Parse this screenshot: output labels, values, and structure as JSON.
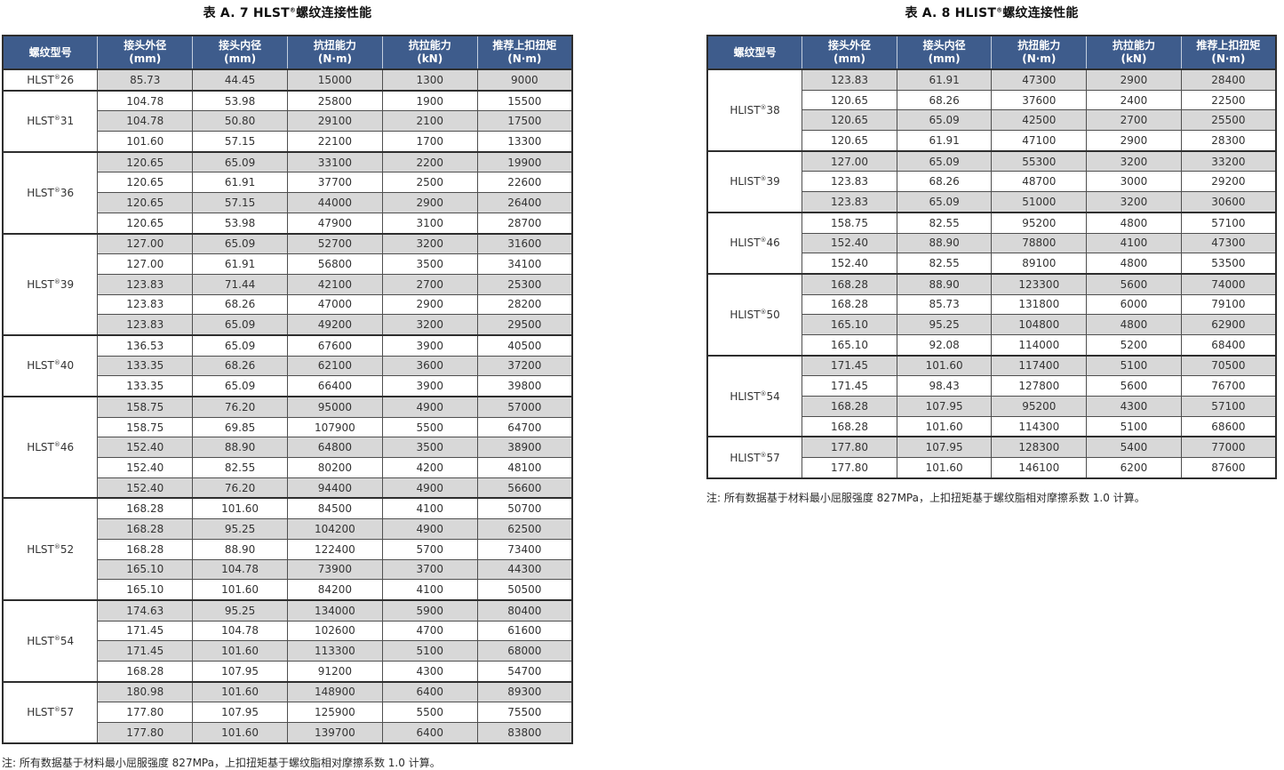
{
  "colors": {
    "header_bg": "#3e5c8c",
    "header_text": "#ffffff",
    "row_shade": "#d8d8d8",
    "row_plain": "#ffffff",
    "border_dark": "#2e2e2e",
    "border_inner": "#4f4f4f"
  },
  "columns": [
    {
      "key": "model",
      "label": "螺纹型号",
      "unit": ""
    },
    {
      "key": "outer-diameter",
      "label": "接头外径",
      "unit": "(mm)"
    },
    {
      "key": "inner-diameter",
      "label": "接头内径",
      "unit": "(mm)"
    },
    {
      "key": "torsion",
      "label": "抗扭能力",
      "unit": "(N·m)"
    },
    {
      "key": "tension",
      "label": "抗拉能力",
      "unit": "(kN)"
    },
    {
      "key": "makeup-torque",
      "label": "推荐上扣扭矩",
      "unit": "(N·m)"
    }
  ],
  "tables": [
    {
      "title": {
        "prefix": "表 A. 7 ",
        "brand": "HLST",
        "reg": "®",
        "suffix": "螺纹连接性能"
      },
      "note": "注: 所有数据基于材料最小屈服强度 827MPa，上扣扭矩基于螺纹脂相对摩擦系数 1.0 计算。",
      "groups": [
        {
          "model": {
            "brand": "HLST",
            "reg": "®",
            "size": "26"
          },
          "rows": [
            [
              "85.73",
              "44.45",
              "15000",
              "1300",
              "9000"
            ]
          ]
        },
        {
          "model": {
            "brand": "HLST",
            "reg": "®",
            "size": "31"
          },
          "rows": [
            [
              "104.78",
              "53.98",
              "25800",
              "1900",
              "15500"
            ],
            [
              "104.78",
              "50.80",
              "29100",
              "2100",
              "17500"
            ],
            [
              "101.60",
              "57.15",
              "22100",
              "1700",
              "13300"
            ]
          ]
        },
        {
          "model": {
            "brand": "HLST",
            "reg": "®",
            "size": "36"
          },
          "rows": [
            [
              "120.65",
              "65.09",
              "33100",
              "2200",
              "19900"
            ],
            [
              "120.65",
              "61.91",
              "37700",
              "2500",
              "22600"
            ],
            [
              "120.65",
              "57.15",
              "44000",
              "2900",
              "26400"
            ],
            [
              "120.65",
              "53.98",
              "47900",
              "3100",
              "28700"
            ]
          ]
        },
        {
          "model": {
            "brand": "HLST",
            "reg": "®",
            "size": "39"
          },
          "rows": [
            [
              "127.00",
              "65.09",
              "52700",
              "3200",
              "31600"
            ],
            [
              "127.00",
              "61.91",
              "56800",
              "3500",
              "34100"
            ],
            [
              "123.83",
              "71.44",
              "42100",
              "2700",
              "25300"
            ],
            [
              "123.83",
              "68.26",
              "47000",
              "2900",
              "28200"
            ],
            [
              "123.83",
              "65.09",
              "49200",
              "3200",
              "29500"
            ]
          ]
        },
        {
          "model": {
            "brand": "HLST",
            "reg": "®",
            "size": "40"
          },
          "rows": [
            [
              "136.53",
              "65.09",
              "67600",
              "3900",
              "40500"
            ],
            [
              "133.35",
              "68.26",
              "62100",
              "3600",
              "37200"
            ],
            [
              "133.35",
              "65.09",
              "66400",
              "3900",
              "39800"
            ]
          ]
        },
        {
          "model": {
            "brand": "HLST",
            "reg": "®",
            "size": "46"
          },
          "rows": [
            [
              "158.75",
              "76.20",
              "95000",
              "4900",
              "57000"
            ],
            [
              "158.75",
              "69.85",
              "107900",
              "5500",
              "64700"
            ],
            [
              "152.40",
              "88.90",
              "64800",
              "3500",
              "38900"
            ],
            [
              "152.40",
              "82.55",
              "80200",
              "4200",
              "48100"
            ],
            [
              "152.40",
              "76.20",
              "94400",
              "4900",
              "56600"
            ]
          ]
        },
        {
          "model": {
            "brand": "HLST",
            "reg": "®",
            "size": "52"
          },
          "rows": [
            [
              "168.28",
              "101.60",
              "84500",
              "4100",
              "50700"
            ],
            [
              "168.28",
              "95.25",
              "104200",
              "4900",
              "62500"
            ],
            [
              "168.28",
              "88.90",
              "122400",
              "5700",
              "73400"
            ],
            [
              "165.10",
              "104.78",
              "73900",
              "3700",
              "44300"
            ],
            [
              "165.10",
              "101.60",
              "84200",
              "4100",
              "50500"
            ]
          ]
        },
        {
          "model": {
            "brand": "HLST",
            "reg": "®",
            "size": "54"
          },
          "rows": [
            [
              "174.63",
              "95.25",
              "134000",
              "5900",
              "80400"
            ],
            [
              "171.45",
              "104.78",
              "102600",
              "4700",
              "61600"
            ],
            [
              "171.45",
              "101.60",
              "113300",
              "5100",
              "68000"
            ],
            [
              "168.28",
              "107.95",
              "91200",
              "4300",
              "54700"
            ]
          ]
        },
        {
          "model": {
            "brand": "HLST",
            "reg": "®",
            "size": "57"
          },
          "rows": [
            [
              "180.98",
              "101.60",
              "148900",
              "6400",
              "89300"
            ],
            [
              "177.80",
              "107.95",
              "125900",
              "5500",
              "75500"
            ],
            [
              "177.80",
              "101.60",
              "139700",
              "6400",
              "83800"
            ]
          ]
        }
      ]
    },
    {
      "title": {
        "prefix": "表 A. 8 ",
        "brand": "HLIST",
        "reg": "®",
        "suffix": "螺纹连接性能"
      },
      "note": "注: 所有数据基于材料最小屈服强度 827MPa，上扣扭矩基于螺纹脂相对摩擦系数 1.0 计算。",
      "groups": [
        {
          "model": {
            "brand": "HLIST",
            "reg": "®",
            "size": "38"
          },
          "rows": [
            [
              "123.83",
              "61.91",
              "47300",
              "2900",
              "28400"
            ],
            [
              "120.65",
              "68.26",
              "37600",
              "2400",
              "22500"
            ],
            [
              "120.65",
              "65.09",
              "42500",
              "2700",
              "25500"
            ],
            [
              "120.65",
              "61.91",
              "47100",
              "2900",
              "28300"
            ]
          ]
        },
        {
          "model": {
            "brand": "HLIST",
            "reg": "®",
            "size": "39"
          },
          "rows": [
            [
              "127.00",
              "65.09",
              "55300",
              "3200",
              "33200"
            ],
            [
              "123.83",
              "68.26",
              "48700",
              "3000",
              "29200"
            ],
            [
              "123.83",
              "65.09",
              "51000",
              "3200",
              "30600"
            ]
          ]
        },
        {
          "model": {
            "brand": "HLIST",
            "reg": "®",
            "size": "46"
          },
          "rows": [
            [
              "158.75",
              "82.55",
              "95200",
              "4800",
              "57100"
            ],
            [
              "152.40",
              "88.90",
              "78800",
              "4100",
              "47300"
            ],
            [
              "152.40",
              "82.55",
              "89100",
              "4800",
              "53500"
            ]
          ]
        },
        {
          "model": {
            "brand": "HLIST",
            "reg": "®",
            "size": "50"
          },
          "rows": [
            [
              "168.28",
              "88.90",
              "123300",
              "5600",
              "74000"
            ],
            [
              "168.28",
              "85.73",
              "131800",
              "6000",
              "79100"
            ],
            [
              "165.10",
              "95.25",
              "104800",
              "4800",
              "62900"
            ],
            [
              "165.10",
              "92.08",
              "114000",
              "5200",
              "68400"
            ]
          ]
        },
        {
          "model": {
            "brand": "HLIST",
            "reg": "®",
            "size": "54"
          },
          "rows": [
            [
              "171.45",
              "101.60",
              "117400",
              "5100",
              "70500"
            ],
            [
              "171.45",
              "98.43",
              "127800",
              "5600",
              "76700"
            ],
            [
              "168.28",
              "107.95",
              "95200",
              "4300",
              "57100"
            ],
            [
              "168.28",
              "101.60",
              "114300",
              "5100",
              "68600"
            ]
          ]
        },
        {
          "model": {
            "brand": "HLIST",
            "reg": "®",
            "size": "57"
          },
          "rows": [
            [
              "177.80",
              "107.95",
              "128300",
              "5400",
              "77000"
            ],
            [
              "177.80",
              "101.60",
              "146100",
              "6200",
              "87600"
            ]
          ]
        }
      ]
    }
  ]
}
